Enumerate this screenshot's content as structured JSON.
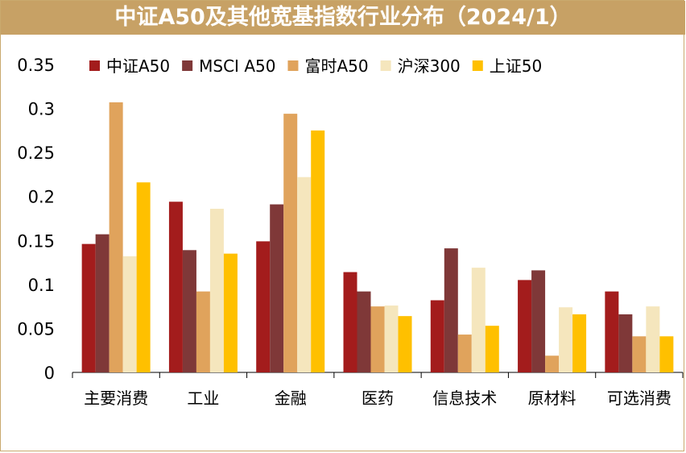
{
  "title": "中证A50及其他宽基指数行业分布（2024/1）",
  "chart_data": {
    "type": "bar",
    "title": "中证A50及其他宽基指数行业分布（2024/1）",
    "xlabel": "",
    "ylabel": "",
    "ylim": [
      0,
      0.35
    ],
    "yticks": [
      "0",
      "0.05",
      "0.1",
      "0.15",
      "0.2",
      "0.25",
      "0.3",
      "0.35"
    ],
    "ytick_values": [
      0,
      0.05,
      0.1,
      0.15,
      0.2,
      0.25,
      0.3,
      0.35
    ],
    "grid": false,
    "legend_position": "top",
    "categories": [
      "主要消费",
      "工业",
      "金融",
      "医药",
      "信息技术",
      "原材料",
      "可选消费"
    ],
    "series": [
      {
        "name": "中证A50",
        "color": "#a31c1c",
        "values": [
          0.146,
          0.194,
          0.149,
          0.114,
          0.082,
          0.105,
          0.092
        ]
      },
      {
        "name": "MSCI A50",
        "color": "#7f3838",
        "values": [
          0.157,
          0.139,
          0.191,
          0.092,
          0.141,
          0.116,
          0.066
        ]
      },
      {
        "name": "富时A50",
        "color": "#e0a35c",
        "values": [
          0.307,
          0.092,
          0.294,
          0.075,
          0.043,
          0.019,
          0.041
        ]
      },
      {
        "name": "沪深300",
        "color": "#f5e6bd",
        "values": [
          0.132,
          0.186,
          0.222,
          0.076,
          0.119,
          0.074,
          0.075
        ]
      },
      {
        "name": "上证50",
        "color": "#ffc000",
        "values": [
          0.216,
          0.135,
          0.275,
          0.064,
          0.053,
          0.066,
          0.041
        ]
      }
    ]
  }
}
